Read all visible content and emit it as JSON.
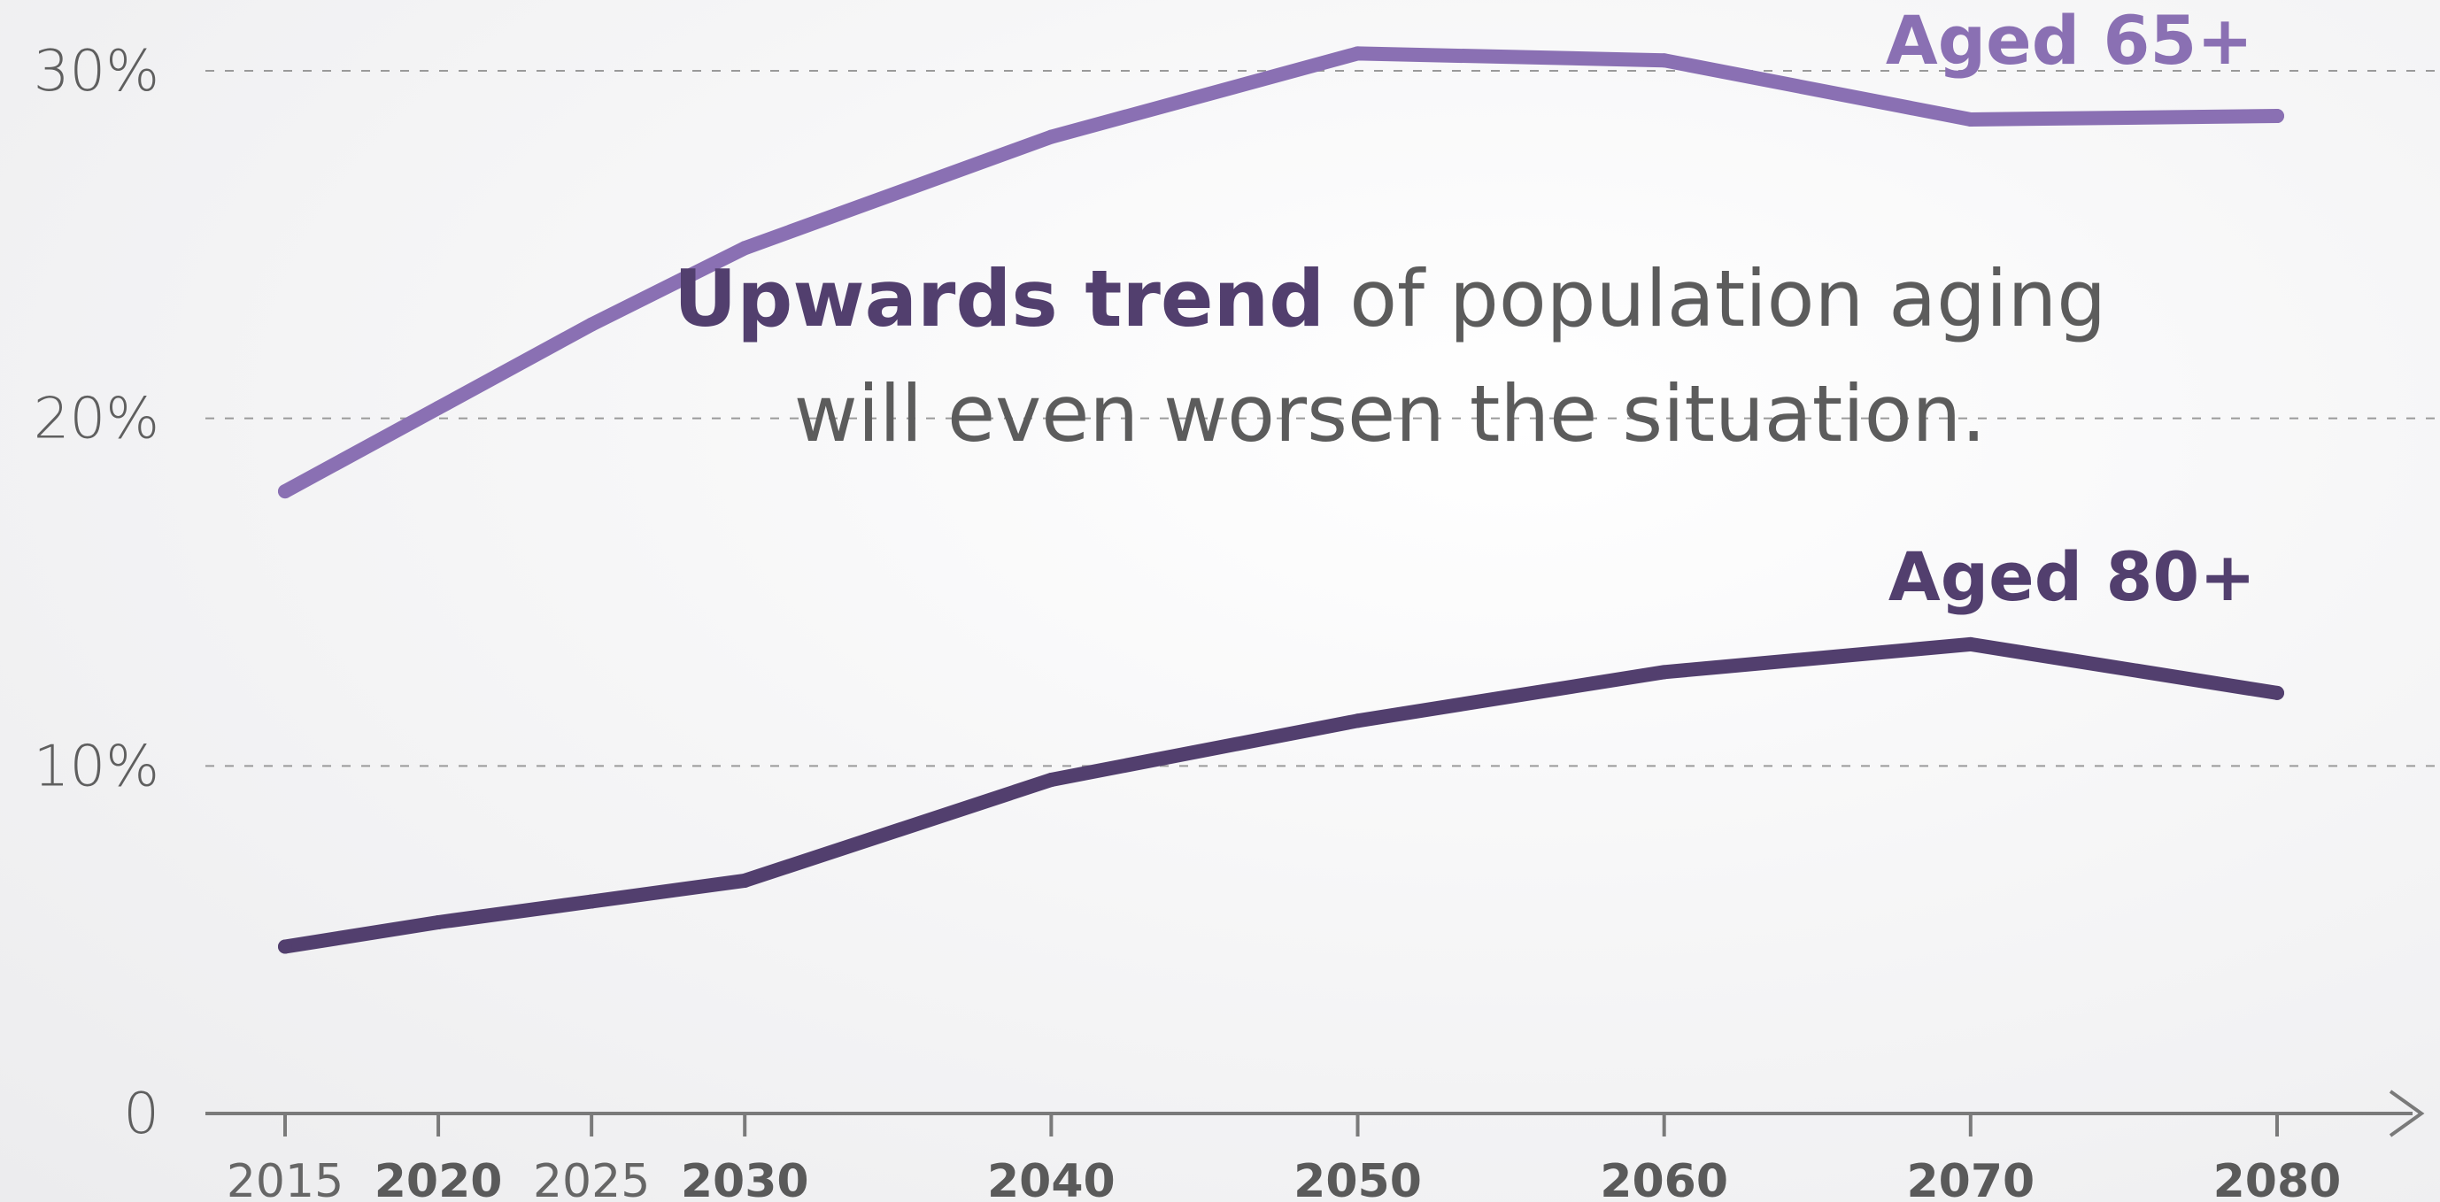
{
  "chart_data": {
    "type": "line",
    "x": [
      2015,
      2020,
      2025,
      2030,
      2040,
      2050,
      2060,
      2070,
      2080
    ],
    "x_tick_labels": [
      {
        "label": "2015",
        "emphasis": false
      },
      {
        "label": "2020",
        "emphasis": true
      },
      {
        "label": "2025",
        "emphasis": false
      },
      {
        "label": "2030",
        "emphasis": true
      },
      {
        "label": "2040",
        "emphasis": true
      },
      {
        "label": "2050",
        "emphasis": true
      },
      {
        "label": "2060",
        "emphasis": true
      },
      {
        "label": "2070",
        "emphasis": true
      },
      {
        "label": "2080",
        "emphasis": true
      }
    ],
    "y_ticks": [
      {
        "value": 0,
        "label": "0"
      },
      {
        "value": 10,
        "label": "10%"
      },
      {
        "value": 20,
        "label": "20%"
      },
      {
        "value": 30,
        "label": "30%"
      }
    ],
    "ylim": [
      0,
      30
    ],
    "grid": "horizontal-dashed",
    "series": [
      {
        "name": "Aged 65+",
        "color": "#8a70b3",
        "values": [
          17.9,
          20.3,
          22.7,
          24.9,
          28.1,
          30.5,
          30.3,
          28.6,
          28.7
        ]
      },
      {
        "name": "Aged 80+",
        "color": "#523f6e",
        "values": [
          4.8,
          5.5,
          6.1,
          6.7,
          9.6,
          11.3,
          12.7,
          13.5,
          12.1
        ]
      }
    ],
    "annotation": {
      "bold": "Upwards trend",
      "rest_line1": " of population aging",
      "line2": "will even worsen the situation."
    },
    "colors": {
      "axis": "#7a7a7a",
      "grid": "#9a9a9a",
      "annotation_bold": "#523f6e",
      "annotation_text": "#5c5c5c"
    }
  }
}
